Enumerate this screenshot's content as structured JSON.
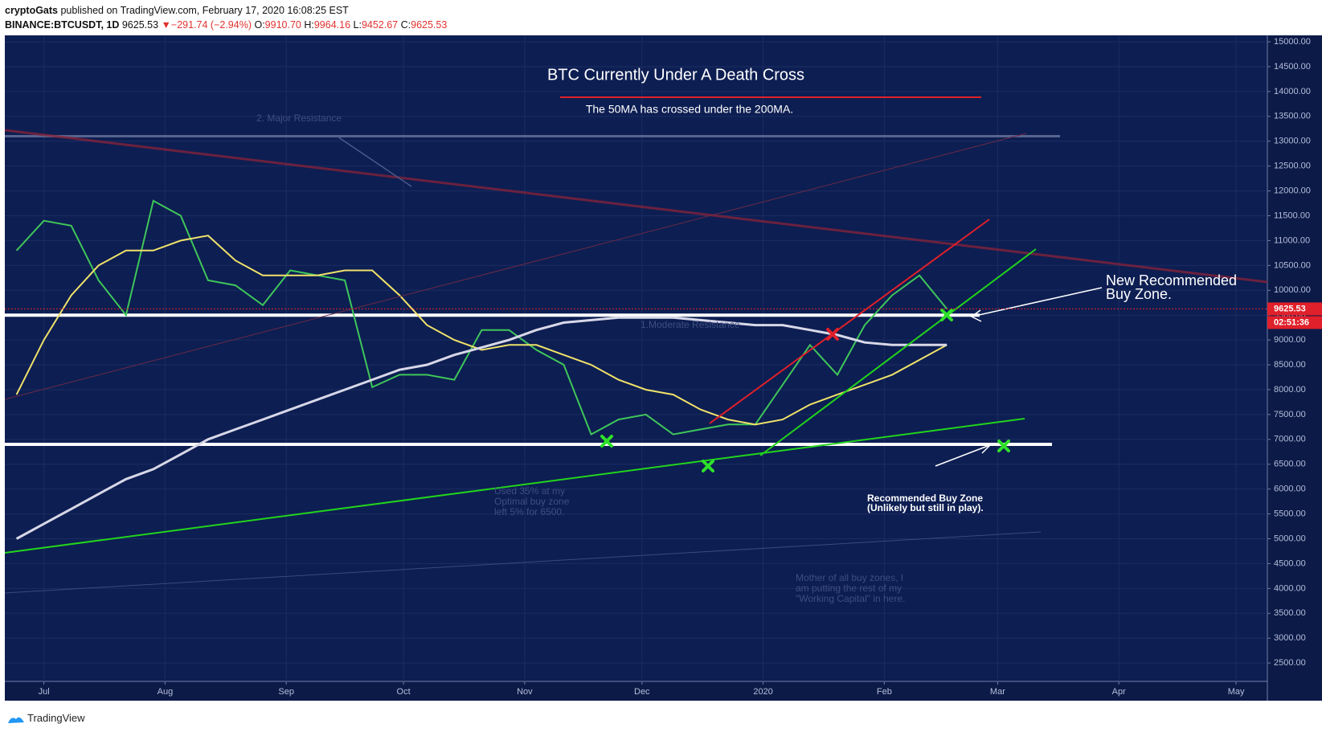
{
  "header": {
    "author": "cryptoGats",
    "published": "published on TradingView.com, February 17, 2020 16:08:25 EST",
    "symbol": "BINANCE:BTCUSDT, 1D",
    "last": "9625.53",
    "arrow": "▼",
    "change": "−291.74 (−2.94%)",
    "o_label": "O:",
    "o": "9910.70",
    "h_label": "H:",
    "h": "9964.16",
    "l_label": "L:",
    "l": "9452.67",
    "c_label": "C:",
    "c": "9625.53"
  },
  "footer": {
    "brand": "TradingView"
  },
  "chart_data": {
    "type": "line",
    "title": "BTC Currently Under A Death Cross",
    "subtitle": "The 50MA has crossed under the 200MA.",
    "annotations": [
      "New Recommended",
      "Buy Zone.",
      "Recommended Buy Zone",
      "(Unlikely but still in play).",
      "2. Major Resistance",
      "1.Moderate Resistance",
      "Used 35% at my",
      "Optimal buy zone",
      "left 5% for 6500.",
      "Mother of all buy zones, I",
      "am putting the rest of my",
      "\"Working Capital\" in here."
    ],
    "x": [
      "2019-06-24",
      "2019-07-01",
      "2019-07-08",
      "2019-07-15",
      "2019-07-22",
      "2019-07-29",
      "2019-08-05",
      "2019-08-12",
      "2019-08-19",
      "2019-08-26",
      "2019-09-02",
      "2019-09-09",
      "2019-09-16",
      "2019-09-23",
      "2019-09-30",
      "2019-10-07",
      "2019-10-14",
      "2019-10-21",
      "2019-10-28",
      "2019-11-04",
      "2019-11-11",
      "2019-11-18",
      "2019-11-25",
      "2019-12-02",
      "2019-12-09",
      "2019-12-16",
      "2019-12-23",
      "2019-12-30",
      "2020-01-06",
      "2020-01-13",
      "2020-01-20",
      "2020-01-27",
      "2020-02-03",
      "2020-02-10",
      "2020-02-17"
    ],
    "series": [
      {
        "name": "BTCUSDT",
        "color": "#3fc65a",
        "values": [
          10800,
          11400,
          11300,
          10200,
          9500,
          11800,
          11500,
          10200,
          10100,
          9700,
          10400,
          10300,
          10200,
          8050,
          8300,
          8300,
          8200,
          9200,
          9200,
          8800,
          8500,
          7100,
          7400,
          7500,
          7100,
          7200,
          7300,
          7300,
          8100,
          8900,
          8300,
          9300,
          9900,
          10300,
          9625.53
        ]
      },
      {
        "name": "MA 50",
        "color": "#f0e26a",
        "values": [
          7900,
          9000,
          9900,
          10500,
          10800,
          10800,
          11000,
          11100,
          10600,
          10300,
          10300,
          10300,
          10400,
          10400,
          9900,
          9300,
          9000,
          8800,
          8900,
          8900,
          8700,
          8500,
          8200,
          8000,
          7900,
          7600,
          7400,
          7300,
          7400,
          7700,
          7900,
          8100,
          8300,
          8600,
          8900
        ]
      },
      {
        "name": "MA 200",
        "color": "#d8d8e8",
        "values": [
          5000,
          5300,
          5600,
          5900,
          6200,
          6400,
          6700,
          7000,
          7200,
          7400,
          7600,
          7800,
          8000,
          8200,
          8400,
          8500,
          8700,
          8850,
          9000,
          9200,
          9350,
          9400,
          9450,
          9450,
          9450,
          9400,
          9350,
          9300,
          9300,
          9200,
          9100,
          8950,
          8900,
          8900,
          8900
        ]
      }
    ],
    "levels": [
      9500,
      6900,
      13100
    ],
    "last_price": {
      "value": 9625.53,
      "label": "9625.53"
    },
    "countdown": "02:51:36",
    "xlim": [
      "2019-06-21",
      "2020-05-09"
    ],
    "xticks": [
      {
        "value": "2019-07-01",
        "label": "Jul"
      },
      {
        "value": "2019-08-01",
        "label": "Aug"
      },
      {
        "value": "2019-09-01",
        "label": "Sep"
      },
      {
        "value": "2019-10-01",
        "label": "Oct"
      },
      {
        "value": "2019-11-01",
        "label": "Nov"
      },
      {
        "value": "2019-12-01",
        "label": "Dec"
      },
      {
        "value": "2020-01-01",
        "label": "2020"
      },
      {
        "value": "2020-02-01",
        "label": "Feb"
      },
      {
        "value": "2020-03-01",
        "label": "Mar"
      },
      {
        "value": "2020-04-01",
        "label": "Apr"
      },
      {
        "value": "2020-05-01",
        "label": "May"
      }
    ],
    "ylim": [
      2130,
      15130
    ],
    "yticks": [
      {
        "value": 2500,
        "label": "2500.00"
      },
      {
        "value": 3000,
        "label": "3000.00"
      },
      {
        "value": 3500,
        "label": "3500.00"
      },
      {
        "value": 4000,
        "label": "4000.00"
      },
      {
        "value": 4500,
        "label": "4500.00"
      },
      {
        "value": 5000,
        "label": "5000.00"
      },
      {
        "value": 5500,
        "label": "5500.00"
      },
      {
        "value": 6000,
        "label": "6000.00"
      },
      {
        "value": 6500,
        "label": "6500.00"
      },
      {
        "value": 7000,
        "label": "7000.00"
      },
      {
        "value": 7500,
        "label": "7500.00"
      },
      {
        "value": 8000,
        "label": "8000.00"
      },
      {
        "value": 8500,
        "label": "8500.00"
      },
      {
        "value": 9000,
        "label": "9000.00"
      },
      {
        "value": 9500,
        "label": "9500.00"
      },
      {
        "value": 10000,
        "label": "10000.00"
      },
      {
        "value": 10500,
        "label": "10500.00"
      },
      {
        "value": 11000,
        "label": "11000.00"
      },
      {
        "value": 11500,
        "label": "11500.00"
      },
      {
        "value": 12000,
        "label": "12000.00"
      },
      {
        "value": 12500,
        "label": "12500.00"
      },
      {
        "value": 13000,
        "label": "13000.00"
      },
      {
        "value": 13500,
        "label": "13500.00"
      },
      {
        "value": 14000,
        "label": "14000.00"
      },
      {
        "value": 14500,
        "label": "14500.00"
      },
      {
        "value": 15000,
        "label": "15000.00"
      }
    ],
    "grid": true
  }
}
